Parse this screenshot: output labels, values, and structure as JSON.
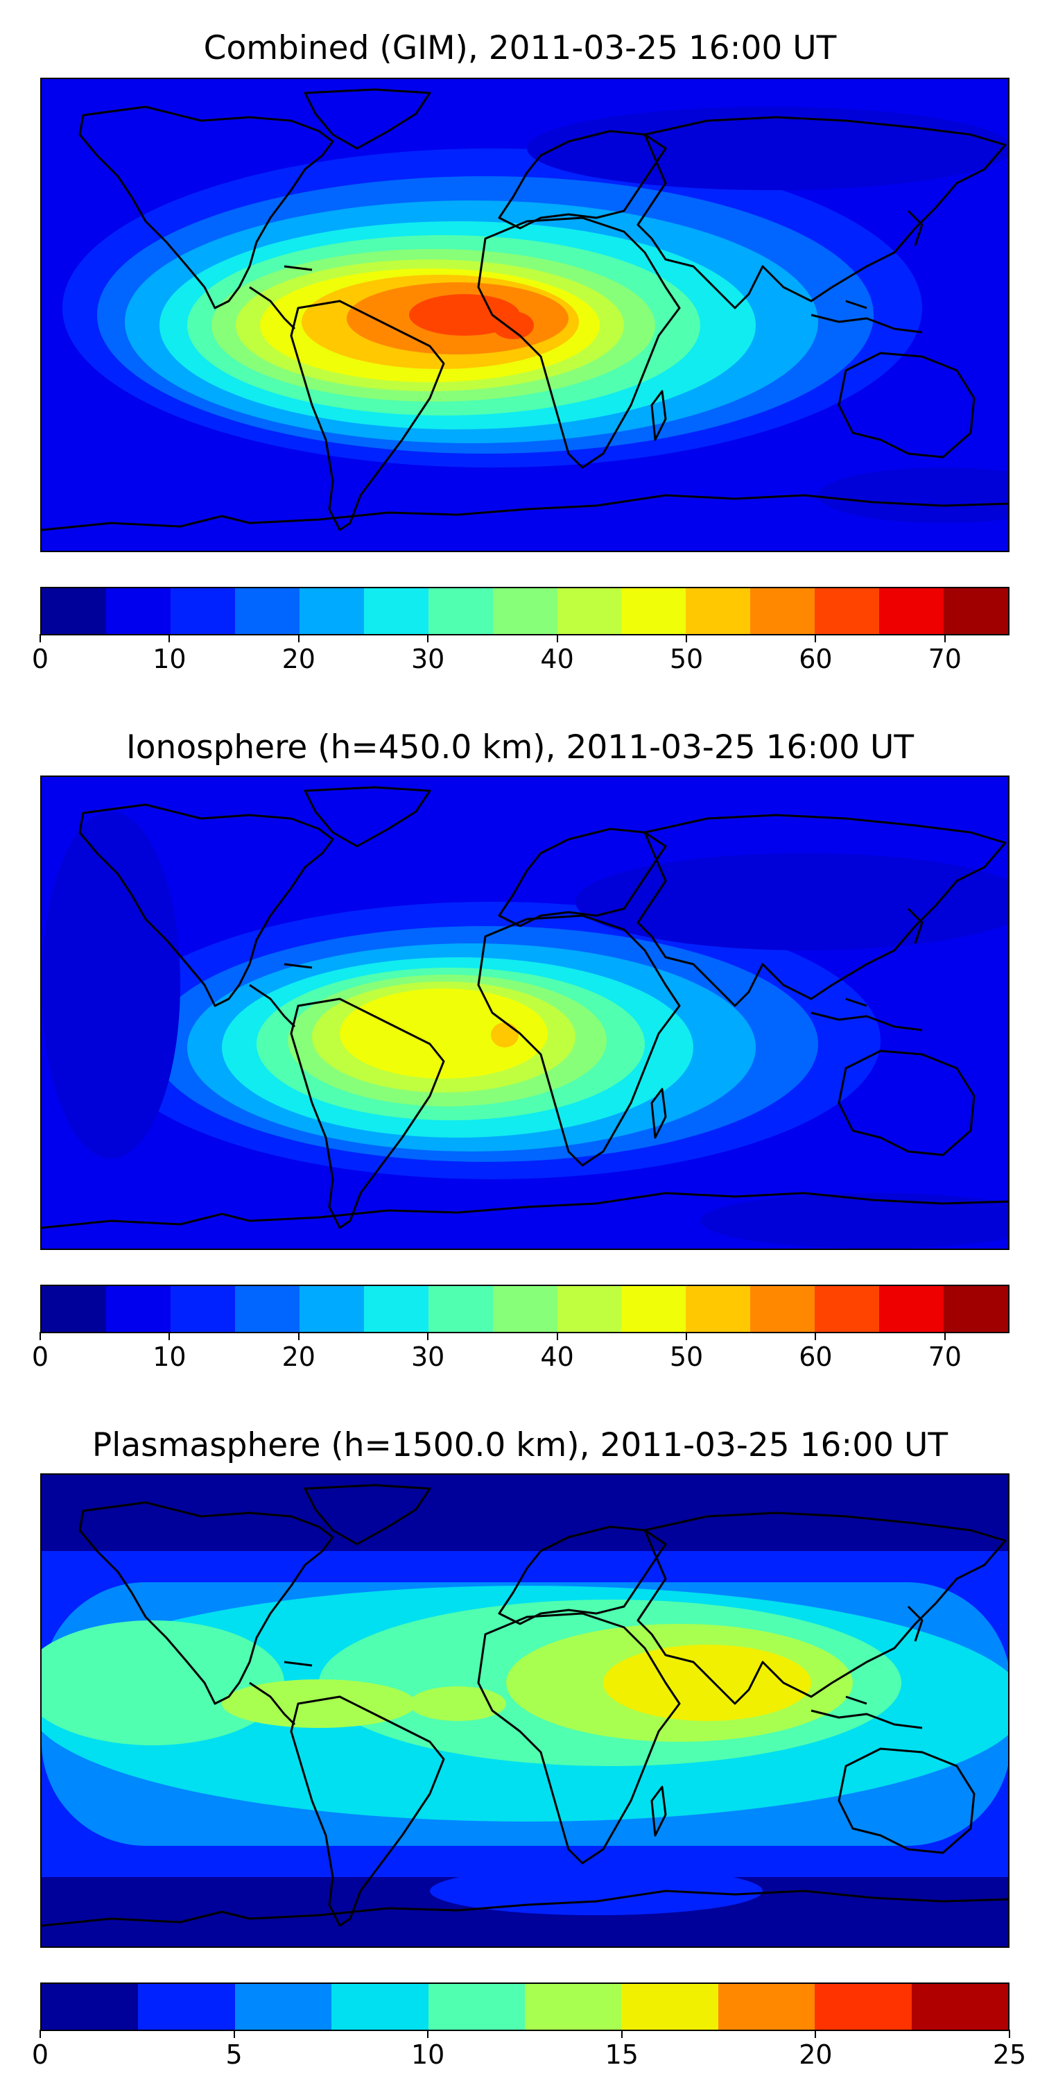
{
  "panels": [
    {
      "title": "Combined (GIM), 2011-03-25 16:00 UT",
      "colorbar": {
        "colors": [
          "#00009a",
          "#0000ee",
          "#0022ff",
          "#0066ff",
          "#00aaff",
          "#10ecf0",
          "#50ffb0",
          "#88ff78",
          "#bfff40",
          "#f0ff08",
          "#ffc800",
          "#ff8800",
          "#ff4400",
          "#ee0000",
          "#a00000"
        ],
        "ticks": [
          "0",
          "10",
          "20",
          "30",
          "40",
          "50",
          "60",
          "70"
        ],
        "range": [
          0,
          75
        ],
        "tick_values": [
          0,
          10,
          20,
          30,
          40,
          50,
          60,
          70
        ]
      }
    },
    {
      "title": "Ionosphere  (h=450.0 km), 2011-03-25 16:00 UT",
      "colorbar": {
        "colors": [
          "#00009a",
          "#0000ee",
          "#0022ff",
          "#0066ff",
          "#00aaff",
          "#10ecf0",
          "#50ffb0",
          "#88ff78",
          "#bfff40",
          "#f0ff08",
          "#ffc800",
          "#ff8800",
          "#ff4400",
          "#ee0000",
          "#a00000"
        ],
        "ticks": [
          "0",
          "10",
          "20",
          "30",
          "40",
          "50",
          "60",
          "70"
        ],
        "range": [
          0,
          75
        ],
        "tick_values": [
          0,
          10,
          20,
          30,
          40,
          50,
          60,
          70
        ]
      }
    },
    {
      "title": "Plasmasphere (h=1500.0 km), 2011-03-25 16:00 UT",
      "colorbar": {
        "colors": [
          "#00009a",
          "#0022ff",
          "#0088ff",
          "#00e0f0",
          "#50ffb0",
          "#a8ff50",
          "#f0f000",
          "#ff8800",
          "#ff3300",
          "#b00000"
        ],
        "ticks": [
          "0",
          "5",
          "10",
          "15",
          "20",
          "25"
        ],
        "range": [
          0,
          25
        ],
        "tick_values": [
          0,
          5,
          10,
          15,
          20,
          25
        ]
      }
    }
  ]
}
